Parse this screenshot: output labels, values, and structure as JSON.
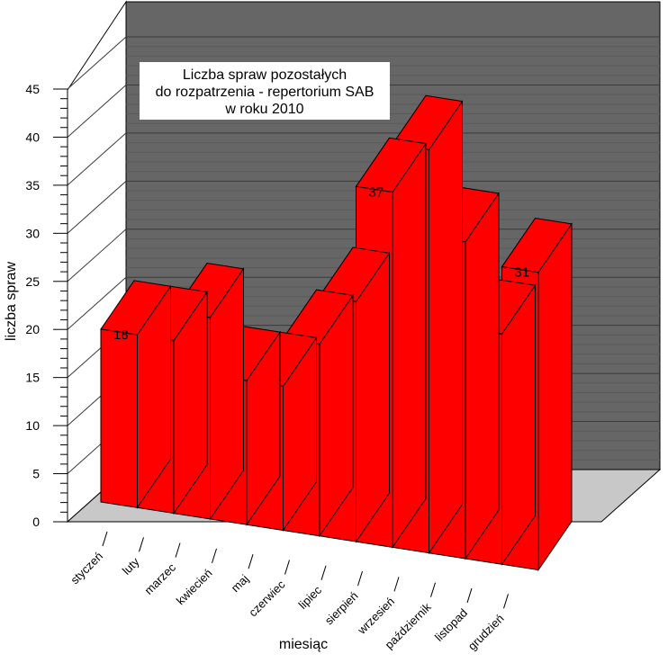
{
  "chart_data": {
    "type": "bar",
    "title_lines": [
      "Liczba spraw pozostałych",
      "do rozpatrzenia - repertorium SAB",
      "w roku 2010"
    ],
    "xlabel": "miesiąc",
    "ylabel": "liczba spraw",
    "ylim": [
      0,
      45
    ],
    "yticks": [
      0,
      5,
      10,
      15,
      20,
      25,
      30,
      35,
      40,
      45
    ],
    "categories": [
      "styczeń",
      "luty",
      "marzec",
      "kwiecień",
      "maj",
      "czerwiec",
      "lipiec",
      "sierpień",
      "wrzesień",
      "październik",
      "listopad",
      "grudzień"
    ],
    "values": [
      18,
      18,
      21,
      15,
      15,
      20,
      25,
      37,
      42,
      33,
      24,
      31
    ],
    "labels": [
      "18",
      "18",
      "21",
      "15",
      "15",
      "20",
      "25",
      "37",
      "42",
      "33",
      "24",
      "31"
    ],
    "bar_color": "#ff0000",
    "wall_color": "#666666",
    "floor_color": "#c8c8c8",
    "grid": true,
    "style": "3d"
  }
}
